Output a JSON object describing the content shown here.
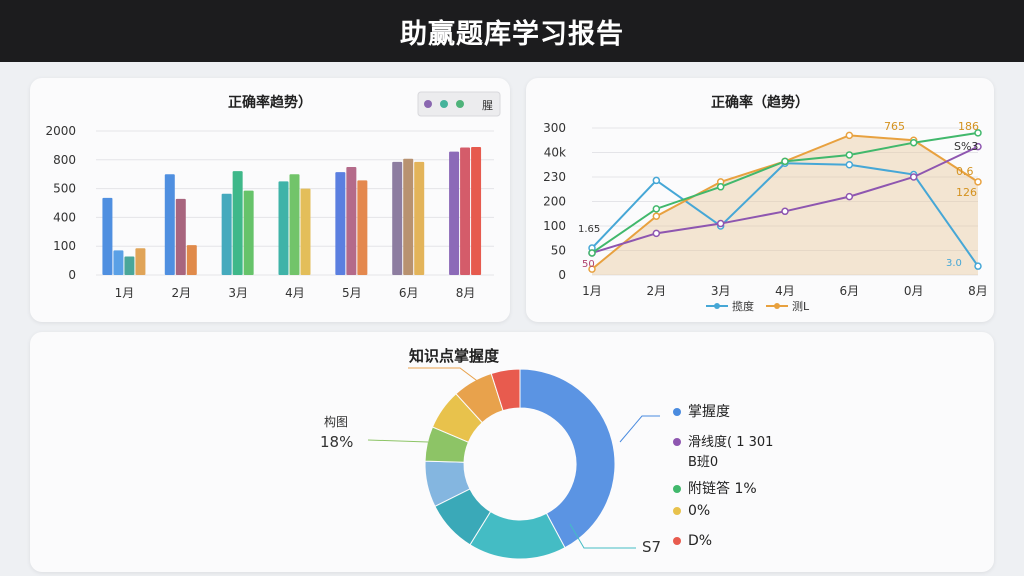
{
  "header": {
    "title": "助赢题库学习报告"
  },
  "chart_data": [
    {
      "type": "bar",
      "title": "正确率趋势）",
      "legend_label": "腥",
      "legend_colors": [
        "#8a67b0",
        "#45b39b",
        "#4fb37a"
      ],
      "y_ticks": [
        "2000",
        "800",
        "500",
        "400",
        "100",
        "0"
      ],
      "categories": [
        "1月",
        "2月",
        "3月",
        "4月",
        "5月",
        "6月",
        "8月"
      ],
      "bars": [
        [
          {
            "v": 375,
            "c": "#4f8fe0"
          },
          {
            "v": 120,
            "c": "#5aa0e6"
          },
          {
            "v": 90,
            "c": "#4aa69a"
          },
          {
            "v": 130,
            "c": "#e0a458"
          }
        ],
        [
          {
            "v": 490,
            "c": "#4f8fe0"
          },
          {
            "v": 370,
            "c": "#a8657e"
          },
          {
            "v": 145,
            "c": "#e08a4a"
          }
        ],
        [
          {
            "v": 395,
            "c": "#45aabd"
          },
          {
            "v": 505,
            "c": "#3fb88a"
          },
          {
            "v": 410,
            "c": "#66c36a"
          }
        ],
        [
          {
            "v": 455,
            "c": "#3fb3a8"
          },
          {
            "v": 490,
            "c": "#72c46a"
          },
          {
            "v": 420,
            "c": "#e3be5a"
          }
        ],
        [
          {
            "v": 500,
            "c": "#5b7fe0"
          },
          {
            "v": 525,
            "c": "#b46a8a"
          },
          {
            "v": 460,
            "c": "#e4884e"
          }
        ],
        [
          {
            "v": 550,
            "c": "#8d7da0"
          },
          {
            "v": 565,
            "c": "#b89270"
          },
          {
            "v": 550,
            "c": "#e3b45a"
          }
        ],
        [
          {
            "v": 600,
            "c": "#8c6ab8"
          },
          {
            "v": 620,
            "c": "#d45c6a"
          },
          {
            "v": 622,
            "c": "#e65a4e"
          }
        ]
      ]
    },
    {
      "type": "line",
      "title": "正确率（趋势）",
      "y_ticks": [
        "300",
        "40k",
        "230",
        "200",
        "100",
        "50",
        "0"
      ],
      "categories": [
        "1月",
        "2月",
        "3月",
        "4月",
        "6月",
        "0月",
        "8月"
      ],
      "series": [
        {
          "name": "揽度",
          "color": "#46a7d6",
          "values": [
            55,
            193,
            100,
            228,
            225,
            205,
            18
          ]
        },
        {
          "name": "测L",
          "color": "#e8a13f",
          "values": [
            12,
            120,
            190,
            232,
            285,
            275,
            190
          ]
        },
        {
          "name": "",
          "color": "#8e56b0",
          "values": [
            45,
            85,
            105,
            130,
            160,
            200,
            262
          ]
        },
        {
          "name": "",
          "color": "#41b86c",
          "values": [
            45,
            135,
            180,
            232,
            245,
            270,
            290
          ]
        }
      ],
      "annotations": [
        "1.65",
        "50",
        "765",
        "186",
        "S%3",
        "0.6",
        "126",
        "3.0"
      ]
    },
    {
      "type": "pie",
      "title": "知识点掌握度",
      "slices": [
        {
          "value": 43,
          "color": "#5b94e3"
        },
        {
          "value": 17,
          "color": "#44bcc4"
        },
        {
          "value": 9,
          "color": "#3aa9b8"
        },
        {
          "value": 8,
          "color": "#84b6e0"
        },
        {
          "value": 6,
          "color": "#8dc466"
        },
        {
          "value": 7,
          "color": "#e8c24c"
        },
        {
          "value": 7,
          "color": "#e8a24c"
        },
        {
          "value": 5,
          "color": "#e85b4e"
        }
      ],
      "left_label_1": "构图",
      "left_label_2": "18%",
      "legend": [
        {
          "text": "掌握度",
          "color": "#4a8bdf"
        },
        {
          "text": "滑线度( 1 301",
          "color": "#8e56b0"
        },
        {
          "text": "B班0",
          "color": ""
        },
        {
          "text": "附链答 1%",
          "color": "#41b86c"
        },
        {
          "text": "0%",
          "color": "#e8c24c"
        },
        {
          "text": "D%",
          "color": "#e85b4e"
        }
      ],
      "bottom_label": "S7"
    }
  ]
}
